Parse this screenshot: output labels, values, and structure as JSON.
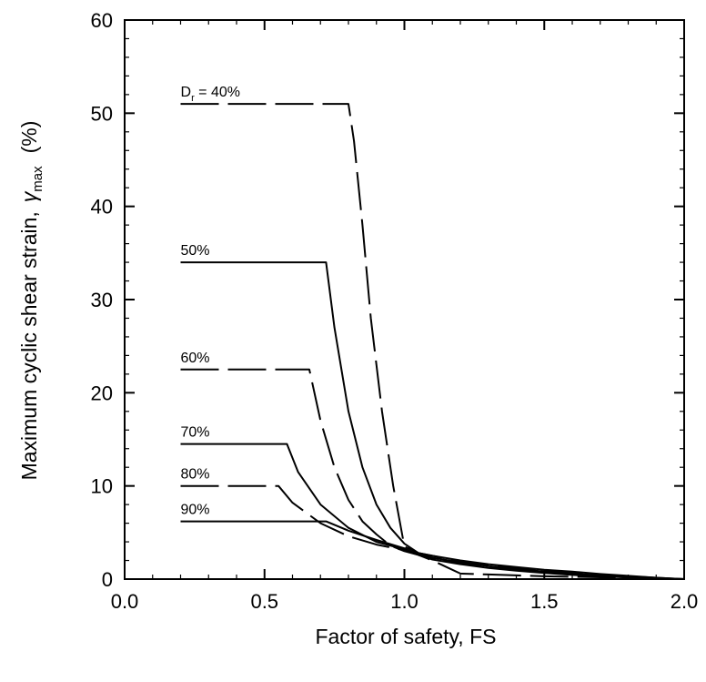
{
  "chart_data": {
    "type": "line",
    "title": "",
    "xlabel": "Factor of safety,  FS",
    "ylabel_main": "Maximum cyclic shear strain,",
    "ylabel_symbol": "γ",
    "ylabel_subscript": "max",
    "ylabel_unit": "(%)",
    "xlim": [
      0.0,
      2.0
    ],
    "ylim": [
      0,
      60
    ],
    "xticks": [
      0.0,
      0.5,
      1.0,
      1.5,
      2.0
    ],
    "xtick_labels": [
      "0.0",
      "0.5",
      "1.0",
      "1.5",
      "2.0"
    ],
    "yticks": [
      0,
      10,
      20,
      30,
      40,
      50,
      60
    ],
    "ytick_labels": [
      "0",
      "10",
      "20",
      "30",
      "40",
      "50",
      "60"
    ],
    "x_minor_step": 0.1,
    "y_minor_step": 2,
    "grid": false,
    "legend": "none",
    "series": [
      {
        "label_parts": [
          "D",
          "r",
          " = 40%"
        ],
        "dashed": true,
        "x": [
          0.2,
          0.8,
          0.82,
          0.85,
          0.88,
          0.92,
          0.96,
          1.0,
          1.05,
          1.1,
          1.15,
          1.2,
          1.3,
          1.4,
          1.5,
          1.6,
          1.7,
          1.8,
          1.9,
          2.0
        ],
        "y": [
          51,
          51,
          47,
          38,
          28,
          18,
          10,
          3.5,
          2.8,
          2.5,
          2.2,
          1.9,
          1.5,
          1.2,
          0.9,
          0.7,
          0.5,
          0.3,
          0.15,
          0
        ]
      },
      {
        "label": "50%",
        "dashed": false,
        "x": [
          0.2,
          0.72,
          0.75,
          0.8,
          0.85,
          0.9,
          0.95,
          1.0,
          1.05,
          1.1,
          1.2,
          1.3,
          1.4,
          1.5,
          1.6,
          1.7,
          1.8,
          1.9,
          2.0
        ],
        "y": [
          34,
          34,
          27,
          18,
          12,
          8,
          5.5,
          3.8,
          2.8,
          2.5,
          2.0,
          1.6,
          1.3,
          1.0,
          0.8,
          0.55,
          0.35,
          0.15,
          0
        ]
      },
      {
        "label": "60%",
        "dashed": true,
        "x": [
          0.2,
          0.66,
          0.7,
          0.75,
          0.8,
          0.85,
          0.9,
          0.95,
          1.0,
          1.05,
          1.1,
          1.15,
          1.2,
          1.3,
          1.4,
          1.5,
          1.6,
          1.7,
          1.8,
          1.9,
          2.0
        ],
        "y": [
          22.5,
          22.5,
          17,
          12,
          8.5,
          6.2,
          4.8,
          3.6,
          3.0,
          2.6,
          2.0,
          1.3,
          0.6,
          0.5,
          0.4,
          0.3,
          0.25,
          0.2,
          0.1,
          0.05,
          0
        ]
      },
      {
        "label": "70%",
        "dashed": false,
        "x": [
          0.2,
          0.58,
          0.62,
          0.7,
          0.8,
          0.9,
          1.0,
          1.05,
          1.1,
          1.2,
          1.3,
          1.4,
          1.5,
          1.6,
          1.7,
          1.8,
          1.9,
          2.0
        ],
        "y": [
          14.5,
          14.5,
          11.5,
          8.0,
          5.5,
          4.0,
          3.2,
          2.7,
          2.3,
          1.8,
          1.4,
          1.1,
          0.8,
          0.6,
          0.4,
          0.25,
          0.1,
          0
        ]
      },
      {
        "label": "80%",
        "dashed": true,
        "x": [
          0.2,
          0.55,
          0.6,
          0.7,
          0.8,
          0.9,
          1.0,
          1.05,
          1.1,
          1.2,
          1.3,
          1.4,
          1.5,
          1.6,
          1.7,
          1.8,
          1.9,
          2.0
        ],
        "y": [
          10,
          10,
          8.2,
          6.0,
          4.6,
          3.7,
          3.1,
          2.6,
          2.2,
          1.7,
          1.3,
          1.0,
          0.7,
          0.5,
          0.35,
          0.2,
          0.1,
          0
        ]
      },
      {
        "label": "90%",
        "dashed": false,
        "x": [
          0.2,
          0.72,
          0.8,
          0.9,
          1.0,
          1.05,
          1.1,
          1.2,
          1.3,
          1.4,
          1.5,
          1.6,
          1.7,
          1.8,
          1.9,
          2.0
        ],
        "y": [
          6.2,
          6.2,
          5.2,
          4.2,
          3.3,
          2.6,
          2.1,
          1.6,
          1.2,
          0.9,
          0.65,
          0.45,
          0.3,
          0.18,
          0.08,
          0
        ]
      }
    ]
  }
}
